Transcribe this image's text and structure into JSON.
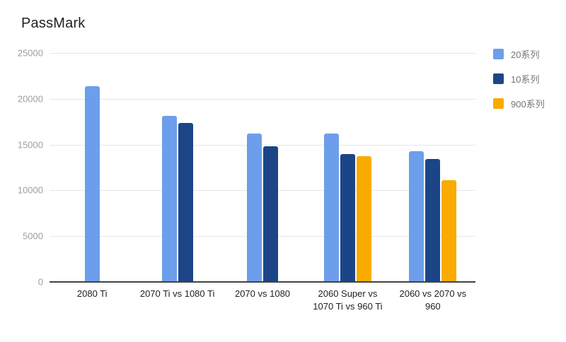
{
  "page": {
    "background": "#ffffff"
  },
  "chart_data": {
    "type": "bar",
    "title": "PassMark",
    "categories": [
      "2080 Ti",
      "2070 Ti vs 1080 Ti",
      "2070 vs 1080",
      "2060 Super vs 1070 Ti vs 960 Ti",
      "2060 vs 2070 vs 960"
    ],
    "series": [
      {
        "name": "20系列",
        "color": "#6D9EEB",
        "values": [
          21400,
          18100,
          16200,
          16200,
          14300
        ]
      },
      {
        "name": "10系列",
        "color": "#1C4587",
        "values": [
          null,
          17400,
          14800,
          14000,
          13400
        ]
      },
      {
        "name": "900系列",
        "color": "#F9AB00",
        "values": [
          null,
          null,
          null,
          13700,
          11100
        ]
      }
    ],
    "xlabel": "",
    "ylabel": "",
    "ylim": [
      0,
      25000
    ],
    "yticks": [
      0,
      5000,
      10000,
      15000,
      20000,
      25000
    ],
    "grid": true,
    "legend_position": "right",
    "colors": {
      "title": "#212121",
      "tick_label": "#9e9e9e",
      "grid_line": "#e6e6e6",
      "axis_line": "#424242",
      "category_label": "#212121",
      "legend_label": "#757575"
    }
  }
}
